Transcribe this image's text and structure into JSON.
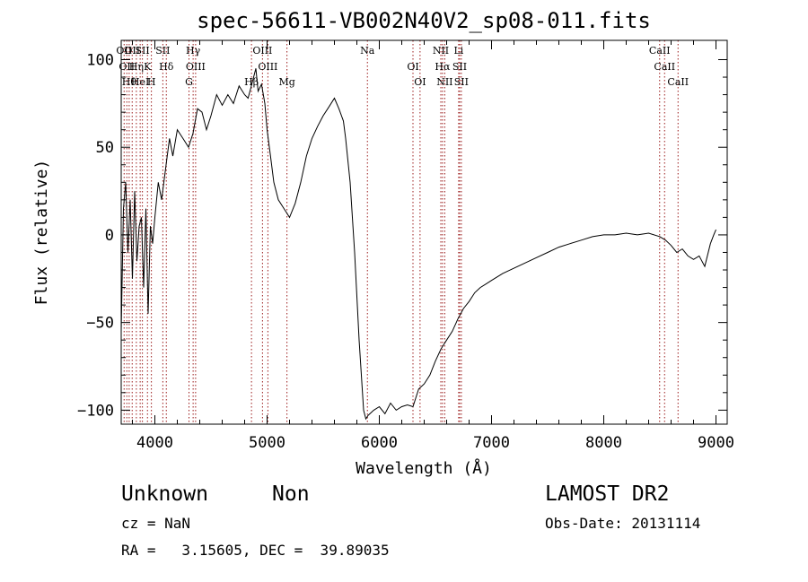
{
  "chart_data": {
    "type": "line",
    "title": "spec-56611-VB002N40V2_sp08-011.fits",
    "xlabel": "Wavelength (Å)",
    "ylabel": "Flux (relative)",
    "xlim": [
      3700,
      9100
    ],
    "ylim": [
      -108,
      111
    ],
    "xticks": [
      4000,
      5000,
      6000,
      7000,
      8000,
      9000
    ],
    "xtick_labels": [
      "4000",
      "5000",
      "6000",
      "7000",
      "8000",
      "9000"
    ],
    "yticks": [
      -100,
      -50,
      0,
      50,
      100
    ],
    "ytick_labels": [
      "−100",
      "−50",
      "0",
      "50",
      "100"
    ],
    "grid": false,
    "series": [
      {
        "color": "#000000",
        "x": [
          3700,
          3720,
          3740,
          3760,
          3780,
          3800,
          3820,
          3840,
          3860,
          3880,
          3900,
          3920,
          3940,
          3960,
          3980,
          4000,
          4030,
          4060,
          4100,
          4130,
          4160,
          4200,
          4250,
          4300,
          4340,
          4380,
          4420,
          4460,
          4500,
          4550,
          4600,
          4650,
          4700,
          4750,
          4800,
          4830,
          4860,
          4900,
          4920,
          4950,
          4980,
          5000,
          5030,
          5060,
          5100,
          5150,
          5200,
          5250,
          5300,
          5350,
          5400,
          5450,
          5500,
          5550,
          5600,
          5640,
          5680,
          5700,
          5740,
          5780,
          5820,
          5860,
          5880,
          5900,
          5950,
          6000,
          6050,
          6100,
          6150,
          6200,
          6250,
          6300,
          6350,
          6400,
          6450,
          6500,
          6550,
          6600,
          6650,
          6700,
          6750,
          6800,
          6850,
          6900,
          6950,
          7000,
          7100,
          7200,
          7300,
          7400,
          7500,
          7600,
          7700,
          7800,
          7900,
          8000,
          8100,
          8200,
          8300,
          8400,
          8500,
          8550,
          8600,
          8650,
          8700,
          8750,
          8800,
          8850,
          8900,
          8950,
          8980,
          9000
        ],
        "y": [
          -55,
          15,
          30,
          -10,
          20,
          -25,
          25,
          -15,
          5,
          10,
          -30,
          15,
          -45,
          5,
          -5,
          10,
          30,
          20,
          40,
          55,
          45,
          60,
          55,
          50,
          58,
          72,
          70,
          60,
          68,
          80,
          74,
          80,
          75,
          85,
          80,
          78,
          85,
          95,
          82,
          86,
          75,
          60,
          45,
          30,
          20,
          15,
          10,
          18,
          30,
          45,
          55,
          62,
          68,
          73,
          78,
          72,
          65,
          55,
          30,
          -10,
          -60,
          -100,
          -105,
          -103,
          -100,
          -98,
          -102,
          -96,
          -100,
          -98,
          -97,
          -98,
          -88,
          -85,
          -80,
          -72,
          -65,
          -60,
          -55,
          -48,
          -42,
          -38,
          -33,
          -30,
          -28,
          -26,
          -22,
          -19,
          -16,
          -13,
          -10,
          -7,
          -5,
          -3,
          -1,
          0,
          0,
          1,
          0,
          1,
          -1,
          -3,
          -6,
          -10,
          -8,
          -12,
          -14,
          -12,
          -18,
          -5,
          0,
          3
        ]
      }
    ],
    "line_markers": [
      {
        "wl": 3726,
        "label": "OII"
      },
      {
        "wl": 3750,
        "label": "OII"
      },
      {
        "wl": 3771,
        "label": "Hθ"
      },
      {
        "wl": 3798,
        "label": "OII"
      },
      {
        "wl": 3835,
        "label": "Hη"
      },
      {
        "wl": 3869,
        "label": "HeI"
      },
      {
        "wl": 3889,
        "label": "SII"
      },
      {
        "wl": 3934,
        "label": "K"
      },
      {
        "wl": 3969,
        "label": "H"
      },
      {
        "wl": 4071,
        "label": "SII"
      },
      {
        "wl": 4102,
        "label": "Hδ"
      },
      {
        "wl": 4304,
        "label": "G"
      },
      {
        "wl": 4341,
        "label": "Hγ"
      },
      {
        "wl": 4363,
        "label": "OIII"
      },
      {
        "wl": 4861,
        "label": "Hβ"
      },
      {
        "wl": 4959,
        "label": "OIII"
      },
      {
        "wl": 5007,
        "label": "OIII"
      },
      {
        "wl": 5177,
        "label": "Mg"
      },
      {
        "wl": 5894,
        "label": "Na"
      },
      {
        "wl": 6300,
        "label": "OI"
      },
      {
        "wl": 6363,
        "label": "OI"
      },
      {
        "wl": 6548,
        "label": "NII"
      },
      {
        "wl": 6563,
        "label": "Hα"
      },
      {
        "wl": 6583,
        "label": "NII"
      },
      {
        "wl": 6707,
        "label": "Li"
      },
      {
        "wl": 6716,
        "label": "SII"
      },
      {
        "wl": 6731,
        "label": "SII"
      },
      {
        "wl": 8498,
        "label": "CaII"
      },
      {
        "wl": 8542,
        "label": "CaII"
      },
      {
        "wl": 8662,
        "label": "CaII"
      }
    ],
    "marker_color": "#9b1b1b"
  },
  "info": {
    "object_class": "Unknown",
    "object_subclass": "Non",
    "survey": "LAMOST DR2",
    "cz": "cz = NaN",
    "obs_date": "Obs-Date: 20131114",
    "coords": "RA =   3.15605, DEC =  39.89035"
  }
}
